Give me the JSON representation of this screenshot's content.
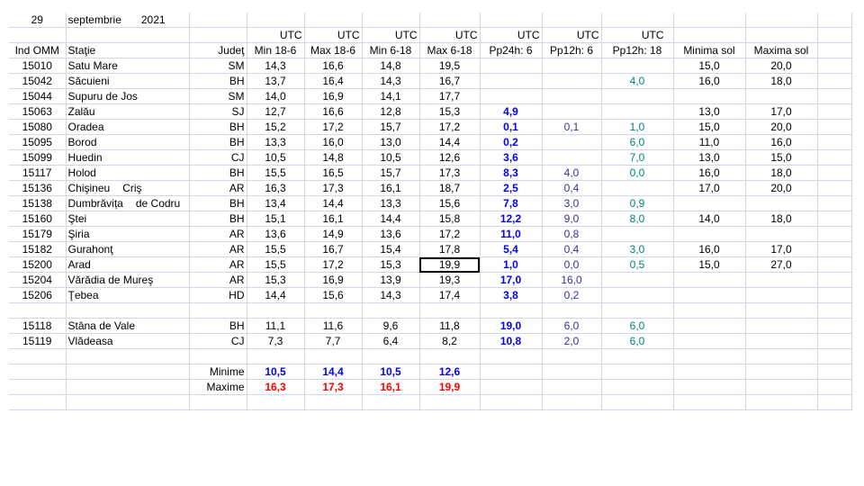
{
  "date": {
    "day": "29",
    "month": "septembrie",
    "year": "2021"
  },
  "utc_label": "UTC",
  "headers": [
    "Ind OMM",
    "Staţie",
    "Judeţ",
    "Min 18-6",
    "Max 18-6",
    "Min 6-18",
    "Max 6-18",
    "Pp24h: 6",
    "Pp12h: 6",
    "Pp12h: 18",
    "Minima sol",
    "Maxima sol"
  ],
  "rows": [
    {
      "id": "15010",
      "name": "Satu Mare",
      "name2": "",
      "jud": "SM",
      "min186": "14,3",
      "max186": "16,6",
      "min618": "14,8",
      "max618": "19,5",
      "pp24": "",
      "pp12_6": "",
      "pp12_18": "",
      "minsol": "15,0",
      "maxsol": "20,0"
    },
    {
      "id": "15042",
      "name": "Săcuieni",
      "name2": "",
      "jud": "BH",
      "min186": "13,7",
      "max186": "16,4",
      "min618": "14,3",
      "max618": "16,7",
      "pp24": "",
      "pp12_6": "",
      "pp12_18": "4,0",
      "minsol": "16,0",
      "maxsol": "18,0"
    },
    {
      "id": "15044",
      "name": "Supuru de Jos",
      "name2": "",
      "jud": "SM",
      "min186": "14,0",
      "max186": "16,9",
      "min618": "14,1",
      "max618": "17,7",
      "pp24": "",
      "pp12_6": "",
      "pp12_18": "",
      "minsol": "",
      "maxsol": ""
    },
    {
      "id": "15063",
      "name": "Zalău",
      "name2": "",
      "jud": "SJ",
      "min186": "12,7",
      "max186": "16,6",
      "min618": "12,8",
      "max618": "15,3",
      "pp24": "4,9",
      "pp12_6": "",
      "pp12_18": "",
      "minsol": "13,0",
      "maxsol": "17,0"
    },
    {
      "id": "15080",
      "name": "Oradea",
      "name2": "",
      "jud": "BH",
      "min186": "15,2",
      "max186": "17,2",
      "min618": "15,7",
      "max618": "17,2",
      "pp24": "0,1",
      "pp12_6": "0,1",
      "pp12_18": "1,0",
      "minsol": "15,0",
      "maxsol": "20,0"
    },
    {
      "id": "15095",
      "name": "Borod",
      "name2": "",
      "jud": "BH",
      "min186": "13,3",
      "max186": "16,0",
      "min618": "13,0",
      "max618": "14,4",
      "pp24": "0,2",
      "pp12_6": "",
      "pp12_18": "6,0",
      "minsol": "11,0",
      "maxsol": "16,0"
    },
    {
      "id": "15099",
      "name": "Huedin",
      "name2": "",
      "jud": "CJ",
      "min186": "10,5",
      "max186": "14,8",
      "min618": "10,5",
      "max618": "12,6",
      "pp24": "3,6",
      "pp12_6": "",
      "pp12_18": "7,0",
      "minsol": "13,0",
      "maxsol": "15,0"
    },
    {
      "id": "15117",
      "name": "Holod",
      "name2": "",
      "jud": "BH",
      "min186": "15,5",
      "max186": "16,5",
      "min618": "15,7",
      "max618": "17,3",
      "pp24": "8,3",
      "pp12_6": "4,0",
      "pp12_18": "0,0",
      "minsol": "16,0",
      "maxsol": "18,0"
    },
    {
      "id": "15136",
      "name": "Chişineu",
      "name2": "Criş",
      "jud": "AR",
      "min186": "16,3",
      "max186": "17,3",
      "min618": "16,1",
      "max618": "18,7",
      "pp24": "2,5",
      "pp12_6": "0,4",
      "pp12_18": "",
      "minsol": "17,0",
      "maxsol": "20,0"
    },
    {
      "id": "15138",
      "name": "Dumbrăvița",
      "name2": "de Codru",
      "jud": "BH",
      "min186": "13,4",
      "max186": "14,4",
      "min618": "13,3",
      "max618": "15,6",
      "pp24": "7,8",
      "pp12_6": "3,0",
      "pp12_18": "0,9",
      "minsol": "",
      "maxsol": ""
    },
    {
      "id": "15160",
      "name": "Ştei",
      "name2": "",
      "jud": "BH",
      "min186": "15,1",
      "max186": "16,1",
      "min618": "14,4",
      "max618": "15,8",
      "pp24": "12,2",
      "pp12_6": "9,0",
      "pp12_18": "8,0",
      "minsol": "14,0",
      "maxsol": "18,0"
    },
    {
      "id": "15179",
      "name": "Şiria",
      "name2": "",
      "jud": "AR",
      "min186": "13,6",
      "max186": "14,9",
      "min618": "13,6",
      "max618": "17,2",
      "pp24": "11,0",
      "pp12_6": "0,8",
      "pp12_18": "",
      "minsol": "",
      "maxsol": ""
    },
    {
      "id": "15182",
      "name": "Gurahonţ",
      "name2": "",
      "jud": "AR",
      "min186": "15,5",
      "max186": "16,7",
      "min618": "15,4",
      "max618": "17,8",
      "pp24": "5,4",
      "pp12_6": "0,4",
      "pp12_18": "3,0",
      "minsol": "16,0",
      "maxsol": "17,0"
    },
    {
      "id": "15200",
      "name": "Arad",
      "name2": "",
      "jud": "AR",
      "min186": "15,5",
      "max186": "17,2",
      "min618": "15,3",
      "max618": "19,9",
      "pp24": "1,0",
      "pp12_6": "0,0",
      "pp12_18": "0,5",
      "minsol": "15,0",
      "maxsol": "27,0"
    },
    {
      "id": "15204",
      "name": "Vărădia de Mureş",
      "name2": "",
      "jud": "AR",
      "min186": "15,3",
      "max186": "16,9",
      "min618": "13,9",
      "max618": "19,3",
      "pp24": "17,0",
      "pp12_6": "16,0",
      "pp12_18": "",
      "minsol": "",
      "maxsol": ""
    },
    {
      "id": "15206",
      "name": "Ţebea",
      "name2": "",
      "jud": "HD",
      "min186": "14,4",
      "max186": "15,6",
      "min618": "14,3",
      "max618": "17,4",
      "pp24": "3,8",
      "pp12_6": "0,2",
      "pp12_18": "",
      "minsol": "",
      "maxsol": ""
    }
  ],
  "rows2": [
    {
      "id": "15118",
      "name": "Stâna de Vale",
      "name2": "",
      "jud": "BH",
      "min186": "11,1",
      "max186": "11,6",
      "min618": "9,6",
      "max618": "11,8",
      "pp24": "19,0",
      "pp12_6": "6,0",
      "pp12_18": "6,0",
      "minsol": "",
      "maxsol": ""
    },
    {
      "id": "15119",
      "name": "Vlădeasa",
      "name2": "",
      "jud": "CJ",
      "min186": "7,3",
      "max186": "7,7",
      "min618": "6,4",
      "max618": "8,2",
      "pp24": "10,8",
      "pp12_6": "2,0",
      "pp12_18": "6,0",
      "minsol": "",
      "maxsol": ""
    }
  ],
  "summary": {
    "min_label": "Minime",
    "min_values": [
      "10,5",
      "14,4",
      "10,5",
      "12,6"
    ],
    "max_label": "Maxime",
    "max_values": [
      "16,3",
      "17,3",
      "16,1",
      "19,9"
    ]
  },
  "colors": {
    "grid": "#d0d7e5",
    "bold_blue": "#0000ff",
    "dark_blue": "#333399",
    "teal": "#008080",
    "red": "#ff0000"
  }
}
